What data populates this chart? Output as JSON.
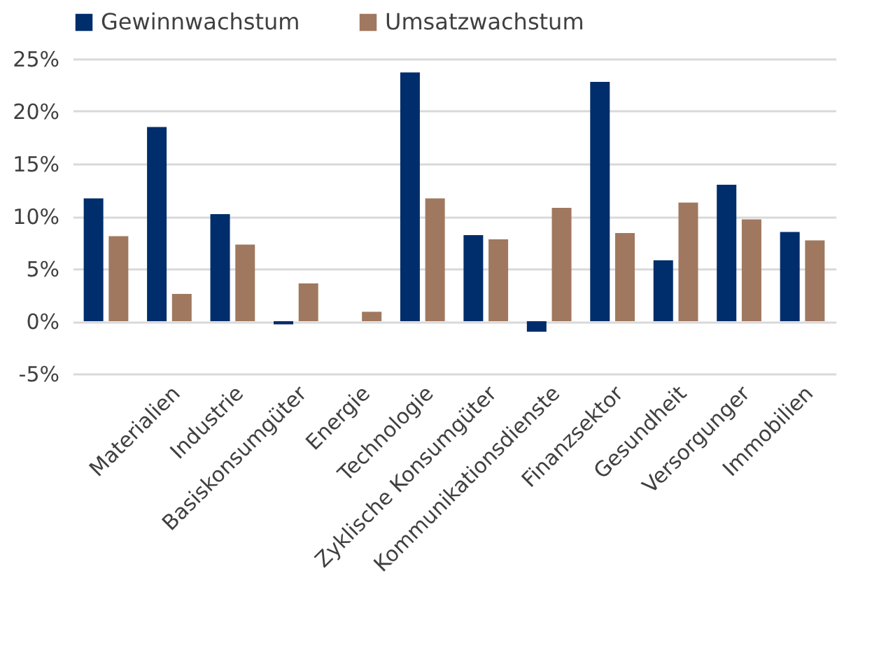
{
  "chart_data": {
    "type": "bar",
    "categories": [
      null,
      "Materialien",
      "Industrie",
      "Basiskonsumgüter",
      "Energie",
      "Technologie",
      "Zyklische Konsumgüter",
      "Kommunikationsdienste",
      "Finanzsektor",
      "Gesundheit",
      "Versorgunger",
      "Immobilien"
    ],
    "series": [
      {
        "name": "Gewinnwachstum",
        "color": "#002d6b",
        "values": [
          11.7,
          18.5,
          10.2,
          -0.3,
          0,
          23.7,
          8.2,
          -1.0,
          22.8,
          5.8,
          13.0,
          8.5
        ]
      },
      {
        "name": "Umsatzwachstum",
        "color": "#a0785f",
        "values": [
          8.1,
          2.6,
          7.3,
          3.6,
          0.9,
          11.7,
          7.8,
          10.8,
          8.4,
          11.3,
          9.7,
          7.7
        ]
      }
    ],
    "ylim": [
      -5,
      25
    ],
    "yticks": [
      {
        "value": -5,
        "label": "-5%"
      },
      {
        "value": 0,
        "label": "0%"
      },
      {
        "value": 5,
        "label": "5%"
      },
      {
        "value": 10,
        "label": "10%"
      },
      {
        "value": 15,
        "label": "15%"
      },
      {
        "value": 20,
        "label": "20%"
      },
      {
        "value": 25,
        "label": "25%"
      }
    ],
    "grid": "y",
    "legend": "top"
  }
}
